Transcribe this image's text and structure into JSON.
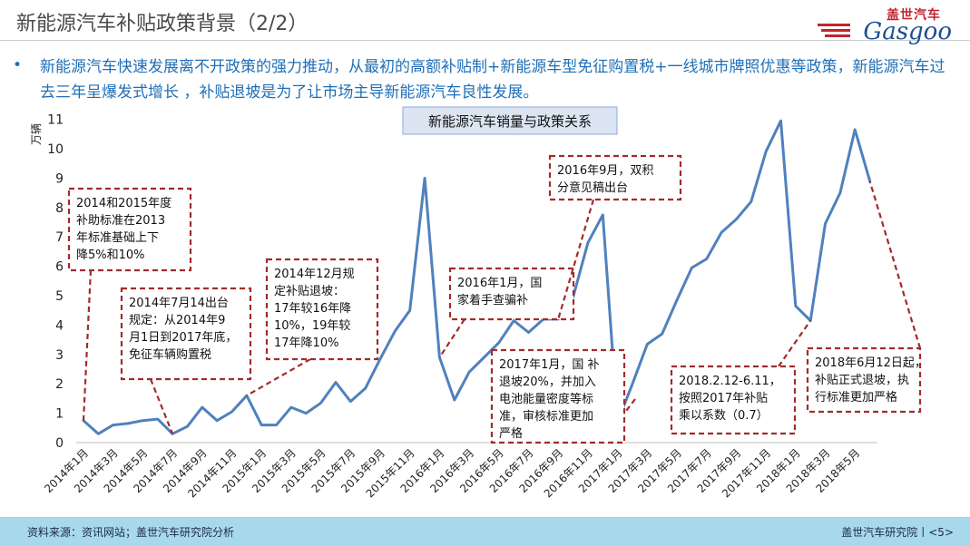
{
  "header": {
    "title": "新能源汽车补贴政策背景（2/2）",
    "logo_cn": "盖世汽车",
    "logo_en": "Gasgoo"
  },
  "bullet": {
    "marker": "•",
    "text": "新能源汽车快速发展离不开政策的强力推动，从最初的高额补贴制+新能源车型免征购置税+一线城市牌照优惠等政策，新能源汽车过去三年呈爆发式增长 ，补贴退坡是为了让市场主导新能源汽车良性发展。"
  },
  "footer": {
    "source": "资料来源：资讯网站；盖世汽车研究院分析",
    "page": "盖世汽车研究院丨<5>"
  },
  "colors": {
    "line": "#4f81bd",
    "dash": "#a32b2b",
    "footer_bg": "#a7d8ec",
    "text_blue": "#1f6fb7"
  },
  "chart_data": {
    "type": "line",
    "title": "新能源汽车销量与政策关系",
    "ylabel": "万辆",
    "ylim": [
      0,
      11
    ],
    "yticks": [
      0,
      1,
      2,
      3,
      4,
      5,
      6,
      7,
      8,
      9,
      10,
      11
    ],
    "categories": [
      "2014年1月",
      "2014年2月",
      "2014年3月",
      "2014年4月",
      "2014年5月",
      "2014年6月",
      "2014年7月",
      "2014年8月",
      "2014年9月",
      "2014年10月",
      "2014年11月",
      "2014年12月",
      "2015年1月",
      "2015年2月",
      "2015年3月",
      "2015年4月",
      "2015年5月",
      "2015年6月",
      "2015年7月",
      "2015年8月",
      "2015年9月",
      "2015年10月",
      "2015年11月",
      "2015年12月",
      "2016年1月",
      "2016年2月",
      "2016年3月",
      "2016年4月",
      "2016年5月",
      "2016年6月",
      "2016年7月",
      "2016年8月",
      "2016年9月",
      "2016年10月",
      "2016年11月",
      "2016年12月",
      "2017年1月",
      "2017年2月",
      "2017年3月",
      "2017年4月",
      "2017年5月",
      "2017年6月",
      "2017年7月",
      "2017年8月",
      "2017年9月",
      "2017年10月",
      "2017年11月",
      "2017年12月",
      "2018年1月",
      "2018年2月",
      "2018年3月",
      "2018年4月",
      "2018年5月",
      "2018年6月"
    ],
    "xtick_labels": [
      "2014年1月",
      "2014年3月",
      "2014年5月",
      "2014年7月",
      "2014年9月",
      "2014年11月",
      "2015年1月",
      "2015年3月",
      "2015年5月",
      "2015年7月",
      "2015年9月",
      "2015年11月",
      "2016年1月",
      "2016年3月",
      "2016年5月",
      "2016年7月",
      "2016年9月",
      "2016年11月",
      "2017年1月",
      "2017年3月",
      "2017年5月",
      "2017年7月",
      "2017年9月",
      "2017年11月",
      "2018年1月",
      "2018年3月",
      "2018年5月"
    ],
    "values": [
      0.75,
      0.3,
      0.6,
      0.65,
      0.75,
      0.8,
      0.3,
      0.55,
      1.2,
      0.75,
      1.05,
      1.6,
      0.6,
      0.6,
      1.2,
      1.0,
      1.35,
      2.05,
      1.4,
      1.85,
      2.85,
      3.8,
      4.5,
      9.0,
      2.9,
      1.45,
      2.4,
      2.9,
      3.4,
      4.15,
      3.75,
      4.2,
      4.2,
      4.95,
      6.8,
      7.75,
      0.7,
      2.0,
      3.35,
      3.7,
      4.85,
      5.95,
      6.25,
      7.15,
      7.6,
      8.2,
      9.9,
      10.95,
      4.65,
      4.15,
      7.45,
      8.5,
      10.65,
      8.9
    ],
    "annotations": [
      {
        "text": "2014和2015年度补助标准在2013年标准基础上下降5%和10%",
        "lines": [
          "2014和2015年度",
          "补助标准在2013",
          "年标准基础上下",
          "降5%和10%"
        ],
        "target_index": 0
      },
      {
        "text": "2014年7月14出台规定：从2014年9月1日到2017年底，免征车辆购置税",
        "lines": [
          "2014年7月14出台",
          "规定：从2014年9",
          "月1日到2017年底，",
          "免征车辆购置税"
        ],
        "target_index": 6
      },
      {
        "text": "2014年12月规定补贴退坡：17年较16年降10%，19年较17年降10%",
        "lines": [
          "2014年12月规",
          "定补贴退坡：",
          "17年较16年降",
          "10%，19年较",
          "17年降10%"
        ],
        "target_index": 11
      },
      {
        "text": "2016年1月，国家着手查骗补",
        "lines": [
          "2016年1月，国",
          "家着手查骗补"
        ],
        "target_index": 24
      },
      {
        "text": "2016年9月，双积分意见稿出台",
        "lines": [
          "2016年9月，双积",
          "分意见稿出台"
        ],
        "target_index": 32
      },
      {
        "text": "2017年1月，国补退坡20%，并加入电池能量密度等标准，审核标准更加严格",
        "lines": [
          "2017年1月，国 补",
          "退坡20%，并加入",
          "电池能量密度等标",
          "准，审核标准更加",
          "严格"
        ],
        "target_index": 36
      },
      {
        "text": "2018.2.12-6.11，按照2017年补贴乘以系数（0.7）",
        "lines": [
          "2018.2.12-6.11，",
          "按照2017年补贴",
          "乘以系数（0.7）"
        ],
        "target_index": 49
      },
      {
        "text": "2018年6月12日起，补贴正式退坡，执行标准更加严格",
        "lines": [
          "2018年6月12日起，",
          "补贴正式退坡，执",
          "行标准更加严格"
        ],
        "target_index": 53
      }
    ]
  }
}
